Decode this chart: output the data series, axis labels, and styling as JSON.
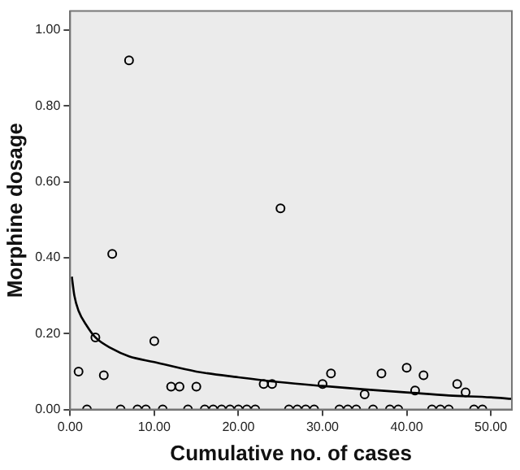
{
  "chart_data": {
    "type": "scatter",
    "xlabel": "Cumulative no. of cases",
    "ylabel": "Morphine dosage",
    "xlim": [
      0,
      52.5
    ],
    "ylim": [
      0,
      1.05
    ],
    "xticks": [
      {
        "value": 0,
        "label": "0.00"
      },
      {
        "value": 10,
        "label": "10.00"
      },
      {
        "value": 20,
        "label": "20.00"
      },
      {
        "value": 30,
        "label": "30.00"
      },
      {
        "value": 40,
        "label": "40.00"
      },
      {
        "value": 50,
        "label": "50.00"
      }
    ],
    "yticks": [
      {
        "value": 0,
        "label": "0.00"
      },
      {
        "value": 0.2,
        "label": "0.20"
      },
      {
        "value": 0.4,
        "label": "0.40"
      },
      {
        "value": 0.6,
        "label": "0.60"
      },
      {
        "value": 0.8,
        "label": "0.80"
      },
      {
        "value": 1,
        "label": "1.00"
      }
    ],
    "marker": "circle",
    "series": [
      {
        "color": "#000000",
        "x": [
          1,
          2,
          3,
          4,
          5,
          6,
          7,
          8,
          9,
          10,
          11,
          12,
          13,
          14,
          15,
          16,
          17,
          18,
          19,
          20,
          21,
          22,
          23,
          24,
          25,
          26,
          27,
          28,
          29,
          30,
          31,
          32,
          33,
          34,
          35,
          36,
          37,
          38,
          39,
          40,
          41,
          42,
          43,
          44,
          45,
          46,
          47,
          48,
          49
        ],
        "values": [
          0.1,
          0,
          0.19,
          0.09,
          0.41,
          0,
          0.92,
          0,
          0,
          0.18,
          0,
          0.06,
          0.06,
          0,
          0.06,
          0,
          0,
          0,
          0,
          0,
          0,
          0,
          0.067,
          0.067,
          0.53,
          0,
          0,
          0,
          0,
          0.067,
          0.095,
          0,
          0,
          0,
          0.04,
          0,
          0.095,
          0,
          0,
          0.11,
          0.05,
          0.09,
          0,
          0,
          0,
          0.067,
          0.045,
          0,
          0
        ]
      },
      {
        "type": "line",
        "marker": "none",
        "color": "#000000",
        "x": [
          0.2,
          0.5,
          1,
          2,
          3,
          5,
          7,
          10,
          15,
          20,
          25,
          30,
          35,
          40,
          45,
          50,
          52.5
        ],
        "values": [
          0.35,
          0.3,
          0.26,
          0.22,
          0.19,
          0.16,
          0.14,
          0.125,
          0.1,
          0.085,
          0.072,
          0.062,
          0.053,
          0.045,
          0.037,
          0.032,
          0.028
        ]
      }
    ]
  }
}
